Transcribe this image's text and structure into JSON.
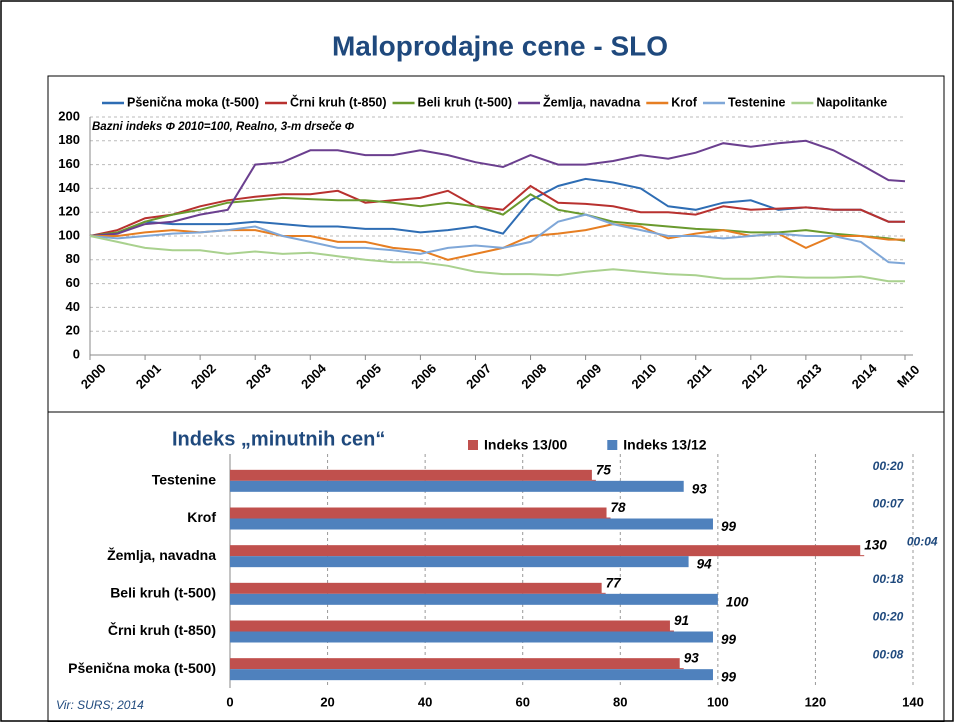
{
  "title": "Maloprodajne cene - SLO",
  "source": "Vir: SURS; 2014",
  "chart_data": [
    {
      "type": "line",
      "annotation": "Bazni indeks Φ  2010=100, Realno, 3-m  drseče Φ",
      "x": [
        2000,
        2000.5,
        2001,
        2001.5,
        2002,
        2002.5,
        2003,
        2003.5,
        2004,
        2004.5,
        2005,
        2005.5,
        2006,
        2006.5,
        2007,
        2007.5,
        2008,
        2008.5,
        2009,
        2009.5,
        2010,
        2010.5,
        2011,
        2011.5,
        2012,
        2012.5,
        2013,
        2013.5,
        2014,
        2014.5,
        2014.8
      ],
      "xlim": [
        2000,
        2014.8
      ],
      "xticks": [
        2000,
        2001,
        2002,
        2003,
        2004,
        2005,
        2006,
        2007,
        2008,
        2009,
        2010,
        2011,
        2012,
        2013,
        2014,
        {
          "value": 2014.8,
          "label": "M10"
        }
      ],
      "ylim": [
        0,
        200
      ],
      "yticks": [
        0,
        20,
        40,
        60,
        80,
        100,
        120,
        140,
        160,
        180,
        200
      ],
      "grid": true,
      "series": [
        {
          "name": "Pšenična moka (t-500)",
          "color": "#2e6db4",
          "values": [
            100,
            102,
            112,
            110,
            110,
            110,
            112,
            110,
            108,
            108,
            106,
            106,
            103,
            105,
            108,
            102,
            130,
            142,
            148,
            145,
            140,
            125,
            122,
            128,
            130,
            122,
            124,
            122,
            122,
            112,
            112
          ]
        },
        {
          "name": "Črni kruh (t-850)",
          "color": "#b8312f",
          "values": [
            100,
            105,
            115,
            118,
            125,
            130,
            133,
            135,
            135,
            138,
            128,
            130,
            132,
            138,
            125,
            122,
            142,
            128,
            127,
            125,
            120,
            120,
            118,
            125,
            122,
            123,
            124,
            122,
            122,
            112,
            112
          ]
        },
        {
          "name": "Beli kruh (t-500)",
          "color": "#6a9a2e",
          "values": [
            100,
            103,
            112,
            118,
            122,
            128,
            130,
            132,
            131,
            130,
            130,
            128,
            125,
            128,
            125,
            118,
            135,
            122,
            118,
            112,
            110,
            108,
            106,
            105,
            103,
            103,
            105,
            102,
            100,
            98,
            96
          ]
        },
        {
          "name": "Žemlja, navadna",
          "color": "#6b3f8f",
          "values": [
            100,
            102,
            110,
            112,
            118,
            122,
            160,
            162,
            172,
            172,
            168,
            168,
            172,
            168,
            162,
            158,
            168,
            160,
            160,
            163,
            168,
            165,
            170,
            178,
            175,
            178,
            180,
            172,
            160,
            147,
            146
          ]
        },
        {
          "name": "Krof",
          "color": "#e67e22",
          "values": [
            100,
            100,
            103,
            105,
            103,
            105,
            105,
            100,
            100,
            95,
            95,
            90,
            88,
            80,
            85,
            90,
            100,
            102,
            105,
            110,
            108,
            98,
            102,
            105,
            100,
            102,
            90,
            100,
            100,
            97,
            97
          ]
        },
        {
          "name": "Testenine",
          "color": "#7fa7d8",
          "values": [
            100,
            98,
            100,
            102,
            103,
            105,
            108,
            100,
            95,
            90,
            90,
            88,
            85,
            90,
            92,
            90,
            95,
            112,
            118,
            110,
            105,
            100,
            100,
            98,
            100,
            102,
            100,
            100,
            95,
            78,
            77
          ]
        },
        {
          "name": "Napolitanke",
          "color": "#a9d18e",
          "values": [
            100,
            95,
            90,
            88,
            88,
            85,
            87,
            85,
            86,
            83,
            80,
            78,
            78,
            75,
            70,
            68,
            68,
            67,
            70,
            72,
            70,
            68,
            67,
            64,
            64,
            66,
            65,
            65,
            66,
            62,
            62
          ]
        }
      ]
    },
    {
      "type": "hbar",
      "title": "Indeks „minutnih cen“",
      "categories": [
        "Testenine",
        "Krof",
        "Žemlja, navadna",
        "Beli kruh (t-500)",
        "Črni kruh (t-850)",
        "Pšenična moka (t-500)"
      ],
      "series": [
        {
          "name": "Indeks 13/00",
          "color": "#c0504d",
          "values": [
            75,
            78,
            130,
            77,
            91,
            93
          ]
        },
        {
          "name": "Indeks 13/12",
          "color": "#4f81bd",
          "values": [
            93,
            99,
            94,
            100,
            99,
            99
          ]
        }
      ],
      "time_labels": [
        "00:20",
        "00:07",
        "00:04",
        "00:18",
        "00:20",
        "00:08"
      ],
      "xlim": [
        0,
        140
      ],
      "xticks": [
        0,
        20,
        40,
        60,
        80,
        100,
        120,
        140
      ],
      "grid": true
    }
  ]
}
